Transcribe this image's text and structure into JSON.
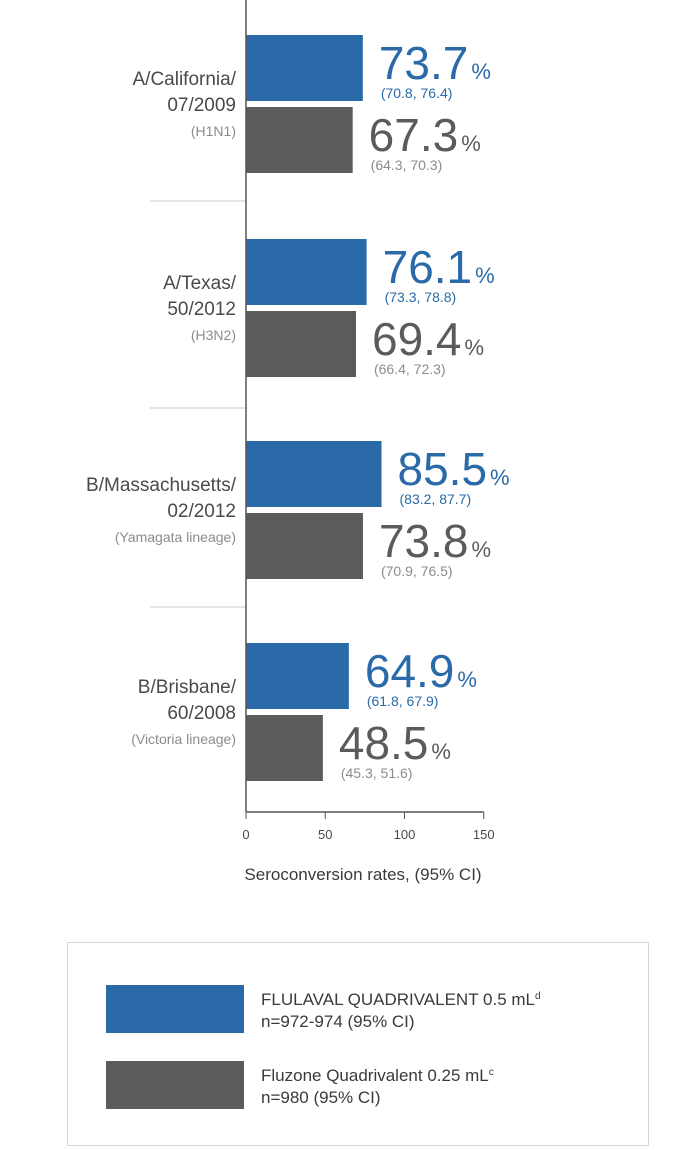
{
  "colors": {
    "flulaval": "#2a6aa8",
    "fluzone": "#5b5b5d",
    "label_text": "#4a4a4a",
    "ci_text": "#8c8c8c",
    "gridline": "#c8c8c8"
  },
  "chart_data": {
    "type": "bar",
    "orientation": "horizontal",
    "xlabel": "Seroconversion rates, (95% CI)",
    "xlim": [
      0,
      150
    ],
    "xticks": [
      "0",
      "50",
      "100",
      "150"
    ],
    "value_unit": "%",
    "categories": [
      {
        "name_lines": [
          "A/California/",
          "07/2009"
        ],
        "subtype": "(H1N1)"
      },
      {
        "name_lines": [
          "A/Texas/",
          "50/2012"
        ],
        "subtype": "(H3N2)"
      },
      {
        "name_lines": [
          "B/Massachusetts/",
          "02/2012"
        ],
        "subtype": "(Yamagata lineage)"
      },
      {
        "name_lines": [
          "B/Brisbane/",
          "60/2008"
        ],
        "subtype": "(Victoria lineage)"
      }
    ],
    "series": [
      {
        "name": "FLULAVAL QUADRIVALENT 0.5 mL",
        "values": [
          73.7,
          76.1,
          85.5,
          64.9
        ],
        "labels": [
          "73.7",
          "76.1",
          "85.5",
          "64.9"
        ],
        "ci": [
          "(70.8, 76.4)",
          "(73.3, 78.8)",
          "(83.2, 87.7)",
          "(61.8, 67.9)"
        ]
      },
      {
        "name": "Fluzone Quadrivalent 0.25 mL",
        "values": [
          67.3,
          69.4,
          73.8,
          48.5
        ],
        "labels": [
          "67.3",
          "69.4",
          "73.8",
          "48.5"
        ],
        "ci": [
          "(64.3, 70.3)",
          "(66.4, 72.3)",
          "(70.9, 76.5)",
          "(45.3, 51.6)"
        ]
      }
    ]
  },
  "legend": {
    "items": [
      {
        "name": "FLULAVAL QUADRIVALENT 0.5 mL",
        "sup": "d",
        "sub": "n=972-974 (95% CI)"
      },
      {
        "name": "Fluzone Quadrivalent 0.25 mL",
        "sup": "c",
        "sub": "n=980 (95% CI)"
      }
    ]
  }
}
